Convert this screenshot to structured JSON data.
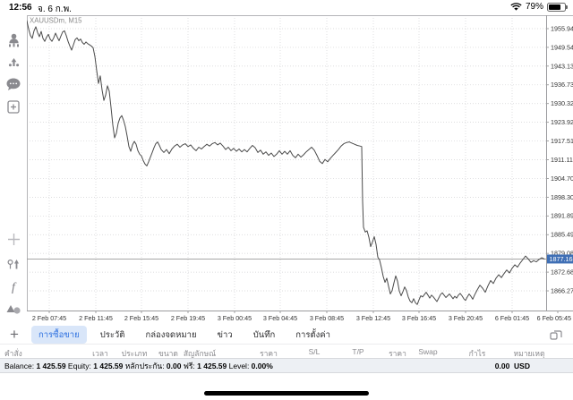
{
  "status_bar": {
    "time": "12:56",
    "date": "จ. 6 ก.พ.",
    "battery_percent": "79%",
    "battery_level": 0.79
  },
  "sidebar": {
    "icons": [
      "account-icon",
      "notifications-icon",
      "chat-icon",
      "new-order-icon",
      "crosshair-icon",
      "trade-levels-icon",
      "indicators-icon",
      "objects-icon"
    ],
    "indicators_glyph": "f",
    "timeframe_label": "M15"
  },
  "chart": {
    "symbol_label": "XAUUSDm, M15"
  },
  "chart_data": {
    "type": "line",
    "title": "XAUUSDm, M15",
    "symbol": "XAUUSDm",
    "timeframe": "M15",
    "current_price": 1877.163,
    "current_price_label": "1877.163",
    "price_top": 1955.945,
    "price_step": 6.405,
    "ylim": [
      1860.0,
      1959.0
    ],
    "grid": true,
    "y_ticks": [
      "1955.945",
      "1949.540",
      "1943.135",
      "1936.730",
      "1930.325",
      "1923.920",
      "1917.515",
      "1911.110",
      "1904.705",
      "1898.300",
      "1891.895",
      "1885.490",
      "1879.085",
      "1872.680",
      "1866.275"
    ],
    "x_labels": [
      "2 Feb 07:45",
      "2 Feb 11:45",
      "2 Feb 15:45",
      "2 Feb 19:45",
      "3 Feb 00:45",
      "3 Feb 04:45",
      "3 Feb 08:45",
      "3 Feb 12:45",
      "3 Feb 16:45",
      "3 Feb 20:45",
      "6 Feb 01:45",
      "6 Feb 05:45"
    ],
    "series": [
      {
        "name": "XAUUSDm close",
        "points": [
          [
            30,
            1958.6
          ],
          [
            32,
            1955.8
          ],
          [
            34,
            1953.6
          ],
          [
            36,
            1952.6
          ],
          [
            38,
            1955.2
          ],
          [
            40,
            1956.6
          ],
          [
            42,
            1954.6
          ],
          [
            44,
            1953.2
          ],
          [
            46,
            1955.0
          ],
          [
            48,
            1952.6
          ],
          [
            50,
            1951.6
          ],
          [
            52,
            1953.0
          ],
          [
            54,
            1954.0
          ],
          [
            56,
            1952.4
          ],
          [
            58,
            1951.6
          ],
          [
            60,
            1952.8
          ],
          [
            62,
            1954.4
          ],
          [
            64,
            1953.0
          ],
          [
            66,
            1951.8
          ],
          [
            68,
            1953.4
          ],
          [
            70,
            1954.8
          ],
          [
            72,
            1955.2
          ],
          [
            74,
            1953.6
          ],
          [
            76,
            1951.6
          ],
          [
            78,
            1950.0
          ],
          [
            80,
            1948.6
          ],
          [
            82,
            1950.4
          ],
          [
            84,
            1952.2
          ],
          [
            86,
            1952.8
          ],
          [
            88,
            1951.8
          ],
          [
            90,
            1952.4
          ],
          [
            92,
            1951.2
          ],
          [
            94,
            1950.6
          ],
          [
            96,
            1951.4
          ],
          [
            98,
            1950.8
          ],
          [
            100,
            1950.4
          ],
          [
            102,
            1950.0
          ],
          [
            104,
            1949.4
          ],
          [
            106,
            1946.4
          ],
          [
            108,
            1941.6
          ],
          [
            110,
            1937.2
          ],
          [
            112,
            1939.8
          ],
          [
            114,
            1935.0
          ],
          [
            116,
            1931.4
          ],
          [
            118,
            1933.2
          ],
          [
            120,
            1936.4
          ],
          [
            122,
            1934.6
          ],
          [
            124,
            1929.0
          ],
          [
            126,
            1923.0
          ],
          [
            128,
            1918.6
          ],
          [
            130,
            1920.2
          ],
          [
            132,
            1923.6
          ],
          [
            134,
            1925.4
          ],
          [
            136,
            1926.2
          ],
          [
            138,
            1924.6
          ],
          [
            140,
            1922.4
          ],
          [
            142,
            1919.2
          ],
          [
            144,
            1915.6
          ],
          [
            146,
            1914.0
          ],
          [
            148,
            1916.2
          ],
          [
            150,
            1917.4
          ],
          [
            152,
            1916.4
          ],
          [
            154,
            1914.2
          ],
          [
            156,
            1913.0
          ],
          [
            158,
            1912.4
          ],
          [
            160,
            1910.8
          ],
          [
            162,
            1909.6
          ],
          [
            164,
            1909.0
          ],
          [
            166,
            1910.4
          ],
          [
            168,
            1912.0
          ],
          [
            170,
            1913.6
          ],
          [
            172,
            1915.2
          ],
          [
            174,
            1916.6
          ],
          [
            176,
            1917.2
          ],
          [
            178,
            1916.0
          ],
          [
            180,
            1914.6
          ],
          [
            183,
            1913.6
          ],
          [
            186,
            1914.6
          ],
          [
            189,
            1913.2
          ],
          [
            192,
            1914.8
          ],
          [
            195,
            1915.8
          ],
          [
            198,
            1916.4
          ],
          [
            201,
            1915.4
          ],
          [
            204,
            1916.2
          ],
          [
            207,
            1916.6
          ],
          [
            210,
            1915.6
          ],
          [
            213,
            1916.2
          ],
          [
            216,
            1915.0
          ],
          [
            219,
            1914.2
          ],
          [
            222,
            1915.4
          ],
          [
            225,
            1914.8
          ],
          [
            228,
            1915.6
          ],
          [
            231,
            1916.4
          ],
          [
            234,
            1915.8
          ],
          [
            237,
            1916.6
          ],
          [
            240,
            1917.0
          ],
          [
            243,
            1916.2
          ],
          [
            246,
            1916.8
          ],
          [
            249,
            1915.8
          ],
          [
            252,
            1914.6
          ],
          [
            255,
            1915.4
          ],
          [
            258,
            1914.2
          ],
          [
            261,
            1915.0
          ],
          [
            264,
            1914.0
          ],
          [
            267,
            1914.8
          ],
          [
            270,
            1913.8
          ],
          [
            273,
            1914.6
          ],
          [
            276,
            1913.8
          ],
          [
            279,
            1915.0
          ],
          [
            282,
            1916.0
          ],
          [
            285,
            1915.2
          ],
          [
            288,
            1913.6
          ],
          [
            291,
            1914.4
          ],
          [
            294,
            1913.0
          ],
          [
            297,
            1913.8
          ],
          [
            300,
            1912.6
          ],
          [
            303,
            1913.4
          ],
          [
            306,
            1912.2
          ],
          [
            309,
            1913.0
          ],
          [
            312,
            1914.2
          ],
          [
            315,
            1913.0
          ],
          [
            318,
            1914.0
          ],
          [
            321,
            1913.0
          ],
          [
            324,
            1914.2
          ],
          [
            327,
            1912.6
          ],
          [
            330,
            1911.8
          ],
          [
            333,
            1913.0
          ],
          [
            336,
            1912.0
          ],
          [
            339,
            1912.8
          ],
          [
            342,
            1913.8
          ],
          [
            345,
            1914.6
          ],
          [
            348,
            1915.4
          ],
          [
            351,
            1914.4
          ],
          [
            354,
            1912.6
          ],
          [
            357,
            1910.6
          ],
          [
            360,
            1909.8
          ],
          [
            363,
            1911.2
          ],
          [
            366,
            1910.4
          ],
          [
            369,
            1911.6
          ],
          [
            372,
            1912.6
          ],
          [
            375,
            1913.6
          ],
          [
            378,
            1914.6
          ],
          [
            381,
            1915.8
          ],
          [
            384,
            1916.6
          ],
          [
            387,
            1917.0
          ],
          [
            390,
            1917.2
          ],
          [
            393,
            1916.8
          ],
          [
            396,
            1916.4
          ],
          [
            399,
            1916.0
          ],
          [
            402,
            1915.8
          ],
          [
            404,
            1915.6
          ],
          [
            405,
            1897.0
          ],
          [
            406,
            1888.0
          ],
          [
            408,
            1886.4
          ],
          [
            410,
            1886.8
          ],
          [
            412,
            1884.6
          ],
          [
            414,
            1881.4
          ],
          [
            416,
            1883.0
          ],
          [
            418,
            1884.8
          ],
          [
            420,
            1882.2
          ],
          [
            422,
            1877.8
          ],
          [
            424,
            1876.8
          ],
          [
            426,
            1874.2
          ],
          [
            428,
            1871.2
          ],
          [
            430,
            1869.2
          ],
          [
            432,
            1870.6
          ],
          [
            434,
            1867.8
          ],
          [
            436,
            1865.2
          ],
          [
            438,
            1866.4
          ],
          [
            440,
            1869.0
          ],
          [
            442,
            1871.4
          ],
          [
            444,
            1869.6
          ],
          [
            446,
            1866.2
          ],
          [
            448,
            1864.6
          ],
          [
            450,
            1866.0
          ],
          [
            452,
            1867.6
          ],
          [
            454,
            1866.4
          ],
          [
            456,
            1864.2
          ],
          [
            458,
            1862.8
          ],
          [
            460,
            1862.2
          ],
          [
            462,
            1863.6
          ],
          [
            464,
            1862.2
          ],
          [
            466,
            1861.6
          ],
          [
            468,
            1863.2
          ],
          [
            470,
            1864.6
          ],
          [
            472,
            1864.2
          ],
          [
            474,
            1865.0
          ],
          [
            476,
            1865.8
          ],
          [
            478,
            1864.8
          ],
          [
            480,
            1863.8
          ],
          [
            482,
            1864.8
          ],
          [
            484,
            1864.2
          ],
          [
            486,
            1863.4
          ],
          [
            488,
            1862.6
          ],
          [
            490,
            1863.8
          ],
          [
            492,
            1865.0
          ],
          [
            494,
            1865.6
          ],
          [
            496,
            1864.8
          ],
          [
            498,
            1864.0
          ],
          [
            500,
            1864.6
          ],
          [
            502,
            1865.2
          ],
          [
            504,
            1864.4
          ],
          [
            506,
            1863.6
          ],
          [
            508,
            1864.4
          ],
          [
            510,
            1863.8
          ],
          [
            512,
            1864.8
          ],
          [
            514,
            1865.4
          ],
          [
            516,
            1864.6
          ],
          [
            518,
            1863.6
          ],
          [
            520,
            1863.0
          ],
          [
            522,
            1864.2
          ],
          [
            524,
            1865.2
          ],
          [
            526,
            1864.4
          ],
          [
            528,
            1863.4
          ],
          [
            530,
            1864.8
          ],
          [
            533,
            1866.6
          ],
          [
            536,
            1868.2
          ],
          [
            539,
            1867.2
          ],
          [
            542,
            1865.8
          ],
          [
            545,
            1868.0
          ],
          [
            548,
            1869.8
          ],
          [
            551,
            1868.8
          ],
          [
            554,
            1870.6
          ],
          [
            557,
            1871.8
          ],
          [
            560,
            1870.8
          ],
          [
            563,
            1872.2
          ],
          [
            566,
            1873.4
          ],
          [
            569,
            1872.4
          ],
          [
            572,
            1874.0
          ],
          [
            575,
            1875.2
          ],
          [
            578,
            1874.4
          ],
          [
            581,
            1875.8
          ],
          [
            584,
            1877.0
          ],
          [
            587,
            1878.2
          ],
          [
            590,
            1877.2
          ],
          [
            593,
            1876.0
          ],
          [
            596,
            1876.6
          ],
          [
            599,
            1876.2
          ],
          [
            602,
            1877.0
          ],
          [
            605,
            1877.6
          ],
          [
            608,
            1877.163
          ]
        ]
      }
    ],
    "colors": {
      "line": "#4a4a4a",
      "grid": "#d2d2d4",
      "price_tag_bg": "#3f6fb5",
      "price_tag_text": "#ffffff",
      "current_price_line": "#9a9a9a"
    },
    "legend": "none"
  },
  "tabs": {
    "add_label": "+",
    "items": [
      "การซื้อขาย",
      "ประวัติ",
      "กล่องจดหมาย",
      "ข่าว",
      "บันทึก",
      "การตั้งค่า"
    ],
    "selected_index": 0
  },
  "table": {
    "columns": [
      "คำสั่ง",
      "เวลา",
      "ประเภท",
      "ขนาด",
      "สัญลักษณ์",
      "ราคา",
      "S/L",
      "T/P",
      "ราคา",
      "Swap",
      "กำไร",
      "หมายเหตุ"
    ]
  },
  "account_bar": {
    "fields": [
      {
        "label": "Balance:",
        "value": "1 425.59"
      },
      {
        "label": "Equity:",
        "value": "1 425.59"
      },
      {
        "label": "หลักประกัน:",
        "value": "0.00"
      },
      {
        "label": "ฟรี:",
        "value": "1 425.59"
      },
      {
        "label": "Level:",
        "value": "0.00%"
      }
    ],
    "profit_value": "0.00",
    "profit_currency": "USD"
  },
  "colors": {
    "selected_tab_bg": "#d9e6f9",
    "selected_tab_text": "#2f71e0",
    "account_bar_bg": "#edf0f4"
  }
}
